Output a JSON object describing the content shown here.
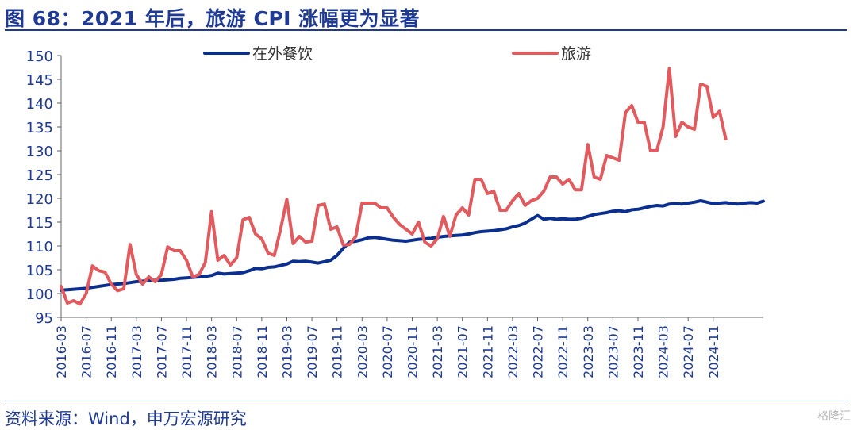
{
  "header": {
    "title": "图 68：2021 年后，旅游 CPI 涨幅更为显著"
  },
  "footer": {
    "source": "资料来源：Wind，申万宏源研究",
    "watermark": "格隆汇"
  },
  "chart_data": {
    "type": "line",
    "title": "",
    "xlabel": "",
    "ylabel": "",
    "ylim": [
      95,
      150
    ],
    "yticks": [
      95,
      100,
      105,
      110,
      115,
      120,
      125,
      130,
      135,
      140,
      145,
      150
    ],
    "xticks": [
      "2016-03",
      "2016-07",
      "2016-11",
      "2017-03",
      "2017-07",
      "2017-11",
      "2018-03",
      "2018-07",
      "2018-11",
      "2019-03",
      "2019-07",
      "2019-11",
      "2020-03",
      "2020-07",
      "2020-11",
      "2021-03",
      "2021-07",
      "2021-11",
      "2022-03",
      "2022-07",
      "2022-11",
      "2023-03",
      "2023-07",
      "2023-11",
      "2024-03",
      "2024-07",
      "2024-11"
    ],
    "x_start": "2016-03",
    "x_end": "2024-11",
    "grid": false,
    "legend_position": "top",
    "colors": {
      "axis": "#666666",
      "text": "#1f3a93"
    },
    "series": [
      {
        "name": "在外餐饮",
        "color": "#0b2f8f",
        "values": [
          100.7,
          100.8,
          100.9,
          101.0,
          101.1,
          101.3,
          101.5,
          101.7,
          101.9,
          102.0,
          102.1,
          102.3,
          102.5,
          102.6,
          102.7,
          102.8,
          102.8,
          102.9,
          103.0,
          103.2,
          103.3,
          103.4,
          103.5,
          103.6,
          103.8,
          104.3,
          104.1,
          104.2,
          104.3,
          104.4,
          104.8,
          105.3,
          105.2,
          105.5,
          105.6,
          105.9,
          106.2,
          106.8,
          106.7,
          106.8,
          106.6,
          106.4,
          106.7,
          107.0,
          108.0,
          109.5,
          110.8,
          111.0,
          111.3,
          111.7,
          111.8,
          111.6,
          111.4,
          111.2,
          111.1,
          111.0,
          111.2,
          111.4,
          111.5,
          111.6,
          111.8,
          112.0,
          112.1,
          112.2,
          112.3,
          112.5,
          112.8,
          113.0,
          113.1,
          113.2,
          113.4,
          113.6,
          114.0,
          114.3,
          114.8,
          115.6,
          116.4,
          115.6,
          115.8,
          115.6,
          115.7,
          115.6,
          115.6,
          115.8,
          116.2,
          116.6,
          116.8,
          117.0,
          117.3,
          117.4,
          117.2,
          117.6,
          117.7,
          118.0,
          118.3,
          118.5,
          118.4,
          118.8,
          118.9,
          118.8,
          119.0,
          119.2,
          119.5,
          119.2,
          118.9,
          119.0,
          119.1,
          118.9,
          118.8,
          119.0,
          119.1,
          119.0,
          119.4
        ]
      },
      {
        "name": "旅游",
        "color": "#e05a5e",
        "values": [
          101.5,
          98.0,
          98.5,
          97.8,
          100.0,
          105.8,
          104.8,
          104.5,
          102.0,
          100.6,
          101.0,
          110.3,
          104.0,
          102.0,
          103.5,
          102.5,
          104.0,
          109.8,
          109.0,
          109.0,
          107.0,
          103.5,
          104.0,
          106.5,
          117.2,
          107.0,
          108.0,
          106.0,
          107.5,
          115.5,
          116.0,
          112.5,
          111.5,
          108.5,
          108.0,
          113.5,
          119.8,
          110.5,
          112.0,
          110.8,
          111.0,
          118.5,
          118.8,
          113.5,
          114.0,
          110.2,
          110.3,
          112.0,
          119.0,
          119.0,
          119.0,
          118.0,
          118.0,
          116.0,
          114.5,
          113.5,
          112.5,
          115.0,
          110.8,
          110.0,
          111.5,
          116.2,
          112.0,
          116.5,
          118.0,
          116.5,
          124.0,
          124.0,
          121.0,
          121.5,
          117.5,
          117.5,
          119.5,
          121.0,
          118.5,
          119.5,
          120.0,
          121.5,
          124.5,
          124.5,
          123.0,
          124.0,
          121.8,
          121.8,
          131.3,
          124.5,
          124.0,
          129.0,
          128.5,
          128.0,
          138.0,
          139.5,
          136.0,
          136.0,
          130.0,
          130.0,
          135.0,
          147.3,
          133.0,
          136.0,
          135.0,
          134.5,
          144.0,
          143.5,
          137.0,
          138.3,
          132.5
        ]
      }
    ]
  }
}
